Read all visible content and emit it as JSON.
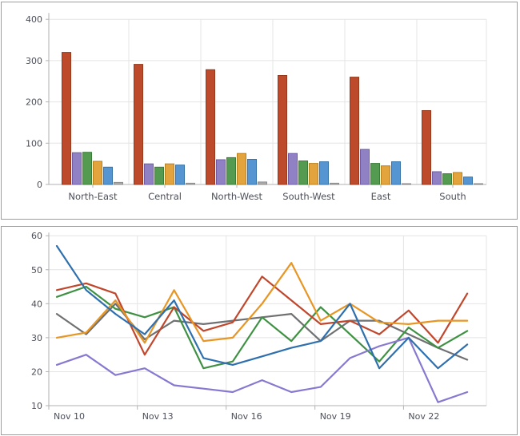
{
  "page": {
    "background": "#ffffff",
    "panel_border_color": "#9d9d9d",
    "grid_color": "#e4e4e4",
    "axis_color": "#b2b2b2",
    "tick_text_color": "#4c4f59"
  },
  "chart_data": [
    {
      "type": "bar",
      "title": "",
      "xlabel": "",
      "ylabel": "",
      "ylim": [
        0,
        400
      ],
      "yticks": [
        0,
        100,
        200,
        300,
        400
      ],
      "ytick_labels": [
        "0",
        "100",
        "200",
        "300",
        "400"
      ],
      "grid": true,
      "legend": "none",
      "categories": [
        "North-East",
        "Central",
        "North-West",
        "South-West",
        "East",
        "South"
      ],
      "series": [
        {
          "name": "series-red",
          "color": "#bd4a2b",
          "border": "#96381c",
          "values": [
            320,
            291,
            278,
            264,
            260,
            179
          ]
        },
        {
          "name": "series-purple",
          "color": "#9081c5",
          "border": "#6d5da6",
          "values": [
            77,
            50,
            60,
            75,
            85,
            31
          ]
        },
        {
          "name": "series-green",
          "color": "#549a51",
          "border": "#397c38",
          "values": [
            78,
            42,
            65,
            57,
            51,
            26
          ]
        },
        {
          "name": "series-orange",
          "color": "#e4a43d",
          "border": "#bb7f1c",
          "values": [
            56,
            50,
            75,
            51,
            45,
            29
          ]
        },
        {
          "name": "series-blue",
          "color": "#5596d2",
          "border": "#3572a8",
          "values": [
            42,
            47,
            61,
            55,
            55,
            18
          ]
        },
        {
          "name": "series-gray",
          "color": "#adadad",
          "border": "#8c8c8c",
          "values": [
            5,
            3,
            6,
            3,
            2,
            2
          ]
        }
      ]
    },
    {
      "type": "line",
      "title": "",
      "xlabel": "",
      "ylabel": "",
      "ylim": [
        10,
        60
      ],
      "yticks": [
        10,
        20,
        30,
        40,
        50,
        60
      ],
      "ytick_labels": [
        "10",
        "20",
        "30",
        "40",
        "50",
        "60"
      ],
      "grid": true,
      "legend": "none",
      "n_points": 15,
      "x_tick_indices": [
        0,
        3,
        6,
        9,
        12
      ],
      "x_tick_labels": [
        "Nov 10",
        "Nov 13",
        "Nov 16",
        "Nov 19",
        "Nov 22"
      ],
      "series": [
        {
          "name": "series-gray",
          "color": "#6e7072",
          "values": [
            37,
            31,
            40,
            29.5,
            35,
            34,
            35,
            36,
            37,
            29,
            35,
            35,
            31,
            27,
            23.5
          ]
        },
        {
          "name": "series-green",
          "color": "#3e9142",
          "values": [
            42,
            45,
            38.5,
            36,
            39,
            21,
            23,
            36,
            29,
            39,
            31,
            23,
            33,
            27,
            32
          ]
        },
        {
          "name": "series-red",
          "color": "#c0462c",
          "values": [
            44,
            46,
            43,
            25,
            39,
            32,
            34.5,
            48,
            41,
            34,
            35,
            31,
            38,
            28.5,
            43
          ]
        },
        {
          "name": "series-orange",
          "color": "#e79624",
          "values": [
            30,
            31.5,
            41,
            28.5,
            44,
            29,
            30,
            40,
            52,
            35,
            40,
            34.5,
            34,
            35,
            35
          ]
        },
        {
          "name": "series-purple",
          "color": "#8878d0",
          "values": [
            22,
            25,
            19,
            21,
            16,
            15,
            14,
            17.5,
            14,
            15.5,
            24,
            27.5,
            30,
            11,
            14
          ]
        },
        {
          "name": "series-blue",
          "color": "#2e6fae",
          "values": [
            57,
            44,
            37,
            31,
            41,
            24,
            22,
            24.5,
            27,
            29,
            40,
            21,
            30,
            21,
            28
          ]
        }
      ]
    }
  ]
}
